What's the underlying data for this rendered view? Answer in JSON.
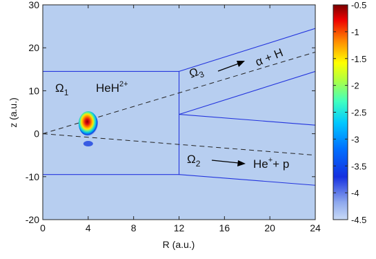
{
  "chart_data": {
    "type": "heatmap",
    "xlabel": "R (a.u.)",
    "ylabel": "z (a.u.)",
    "xlim": [
      0,
      24
    ],
    "ylim": [
      -20,
      30
    ],
    "x_ticks": [
      "0",
      "4",
      "8",
      "12",
      "16",
      "20",
      "24"
    ],
    "y_ticks": [
      "30",
      "20",
      "10",
      "0",
      "-10",
      "-20"
    ],
    "colorbar": {
      "min": -4.5,
      "max": -0.5,
      "ticks": [
        "-0.5",
        "-1",
        "-1.5",
        "-2",
        "-2.5",
        "-3",
        "-3.5",
        "-4",
        "-4.5"
      ]
    },
    "background_color": "#b7cef0",
    "wave_packet": {
      "R": 4,
      "z": 2.5
    },
    "regions": {
      "omega1_label": "Ω",
      "omega1_sub": "1",
      "omega1_species": "HeH",
      "omega1_species_sup": "2+",
      "omega2_label": "Ω",
      "omega2_sub": "2",
      "omega2_products": "He",
      "omega2_products_sup": "+",
      "omega2_products_tail": "+ p",
      "omega3_label": "Ω",
      "omega3_sub": "3",
      "omega3_products": "α + H"
    },
    "boundaries": {
      "box": {
        "R": [
          0,
          12
        ],
        "z": [
          -9.5,
          14.5
        ]
      },
      "upper_channel_top": [
        [
          12,
          14.5
        ],
        [
          24,
          24.5
        ]
      ],
      "upper_channel_bottom": [
        [
          12,
          4.5
        ],
        [
          24,
          2
        ]
      ],
      "inner_wall": [
        [
          12,
          4.5
        ],
        [
          24,
          14.5
        ]
      ],
      "lower_channel_bottom": [
        [
          12,
          -9.5
        ],
        [
          24,
          -12
        ]
      ],
      "dashed_upper": [
        [
          0,
          0
        ],
        [
          24,
          19
        ]
      ],
      "dashed_lower": [
        [
          0,
          0
        ],
        [
          24,
          -5
        ]
      ]
    }
  }
}
